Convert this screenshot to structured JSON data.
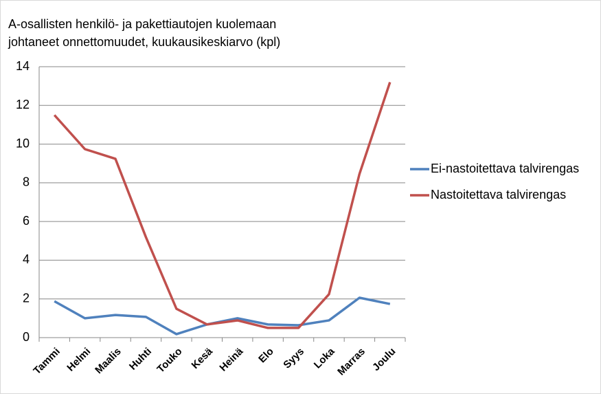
{
  "chart_data": {
    "type": "line",
    "title": [
      "A-osallisten henkilö- ja pakettiautojen kuolemaan",
      "johtaneet onnettomuudet, kuukausikeskiarvo (kpl)"
    ],
    "categories": [
      "Tammi",
      "Helmi",
      "Maalis",
      "Huhti",
      "Touko",
      "Kesä",
      "Heinä",
      "Elo",
      "Syys",
      "Loka",
      "Marras",
      "Joulu"
    ],
    "series": [
      {
        "name": "Ei-nastoitettava talvirengas",
        "color": "#4f81bd",
        "values": [
          1.88,
          1.0,
          1.17,
          1.07,
          0.18,
          0.68,
          1.0,
          0.68,
          0.64,
          0.89,
          2.06,
          1.74
        ]
      },
      {
        "name": "Nastoitettava talvirengas",
        "color": "#c0504d",
        "values": [
          11.5,
          9.74,
          9.24,
          5.19,
          1.49,
          0.68,
          0.89,
          0.5,
          0.5,
          2.24,
          8.46,
          13.2
        ]
      }
    ],
    "ylim": [
      0,
      14
    ],
    "yticks": [
      0,
      2,
      4,
      6,
      8,
      10,
      12,
      14
    ],
    "grid": true,
    "legend": "right"
  }
}
